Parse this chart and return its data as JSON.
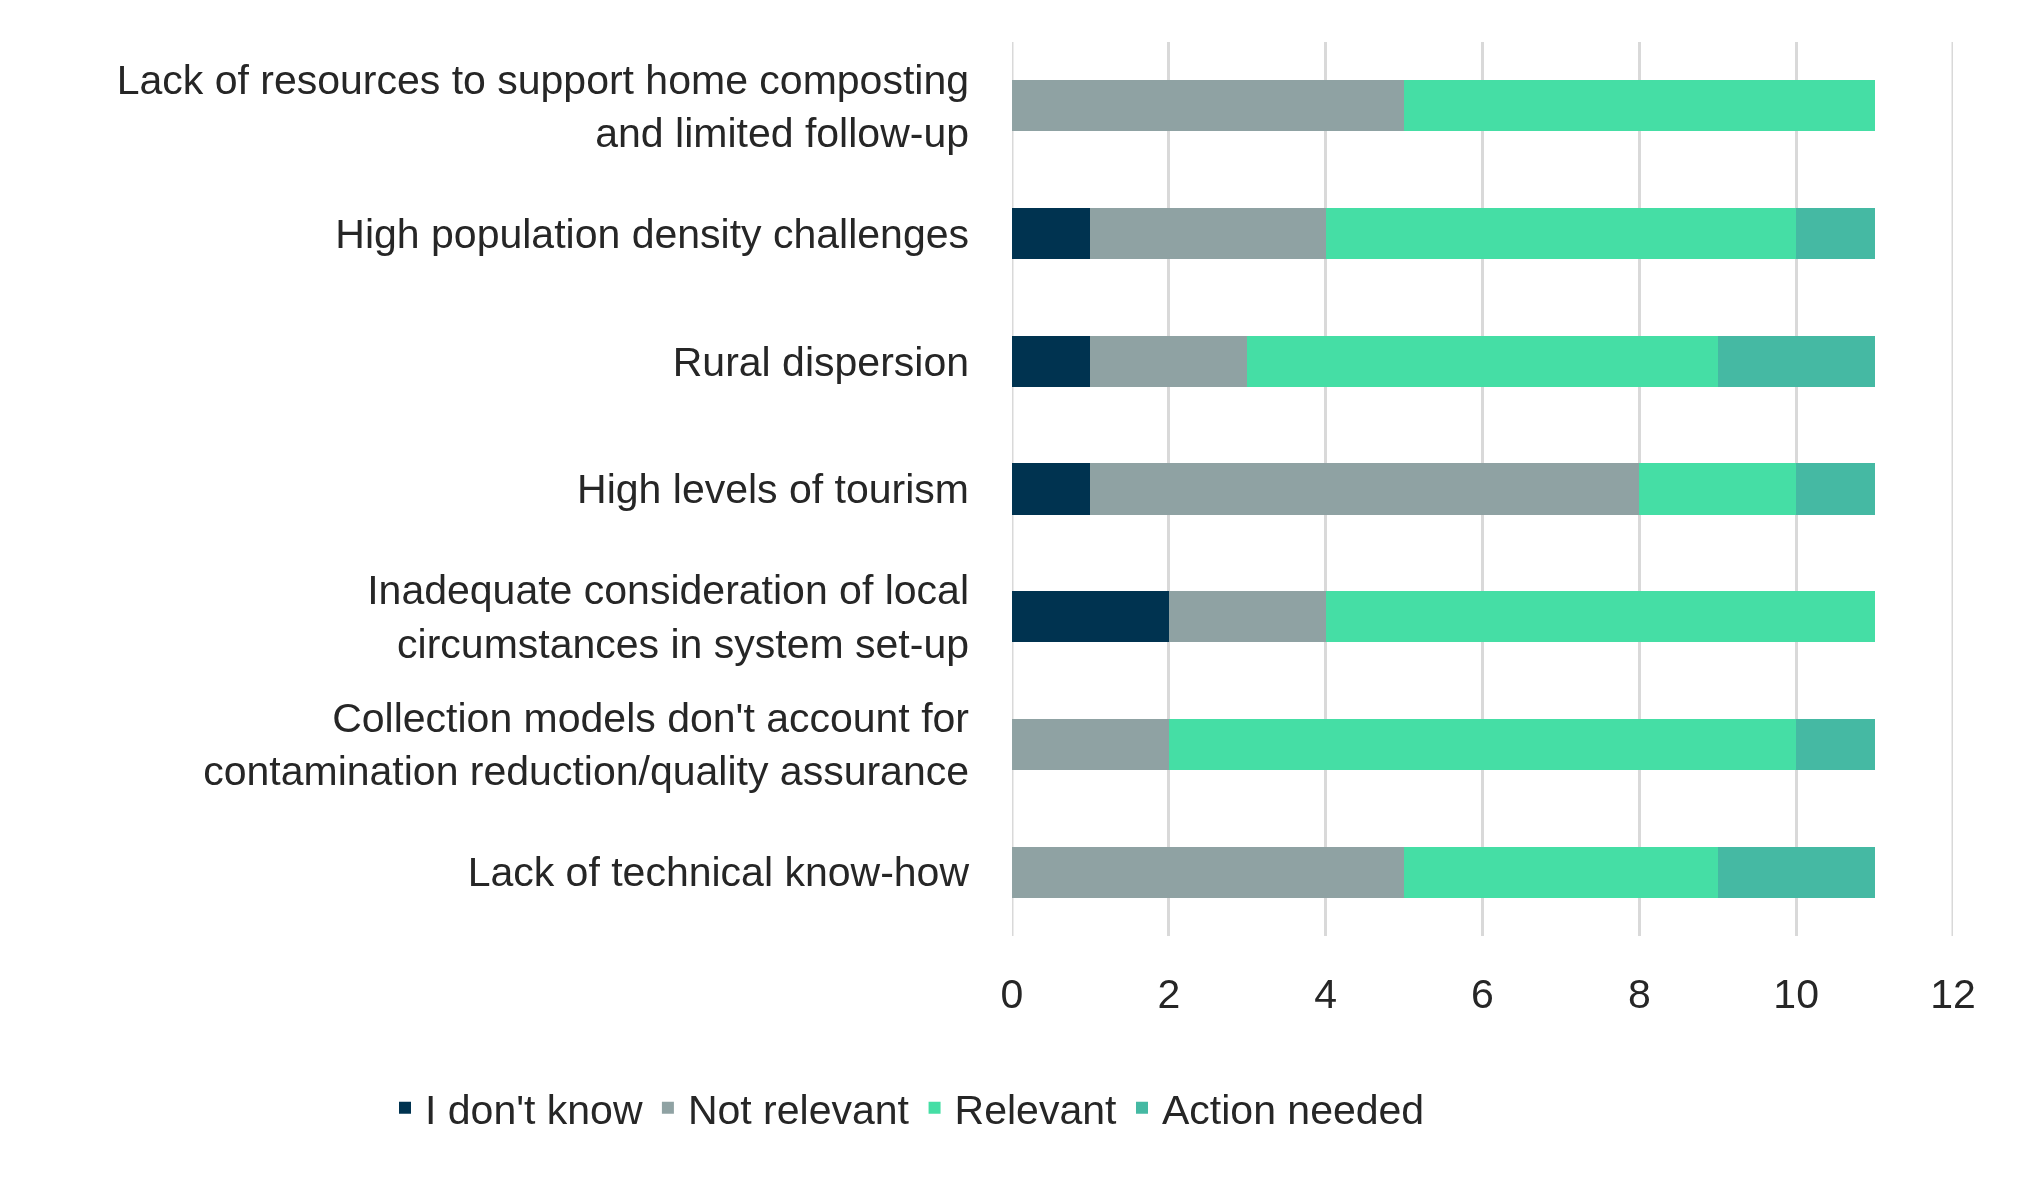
{
  "chart_data": {
    "type": "bar",
    "orientation": "horizontal",
    "stacked": true,
    "categories": [
      "Lack of resources to support home composting and limited follow-up",
      "High population density challenges",
      "Rural dispersion",
      "High levels of tourism",
      "Inadequate consideration of local circumstances in system set-up",
      "Collection models don't account for contamination reduction/quality assurance",
      "Lack of technical know-how"
    ],
    "series": [
      {
        "name": "I don't know",
        "color": "#003350",
        "values": [
          0,
          1,
          1,
          1,
          2,
          0,
          0
        ]
      },
      {
        "name": "Not relevant",
        "color": "#8fa2a3",
        "values": [
          5,
          3,
          2,
          7,
          2,
          2,
          5
        ]
      },
      {
        "name": "Relevant",
        "color": "#45dea5",
        "values": [
          6,
          6,
          6,
          2,
          7,
          8,
          4
        ]
      },
      {
        "name": "Action needed",
        "color": "#45b9a3",
        "values": [
          0,
          1,
          2,
          1,
          0,
          1,
          2
        ]
      }
    ],
    "xlim": [
      0,
      12
    ],
    "xticks": [
      0,
      2,
      4,
      6,
      8,
      10,
      12
    ],
    "grid": "x",
    "legend": "bottom"
  }
}
